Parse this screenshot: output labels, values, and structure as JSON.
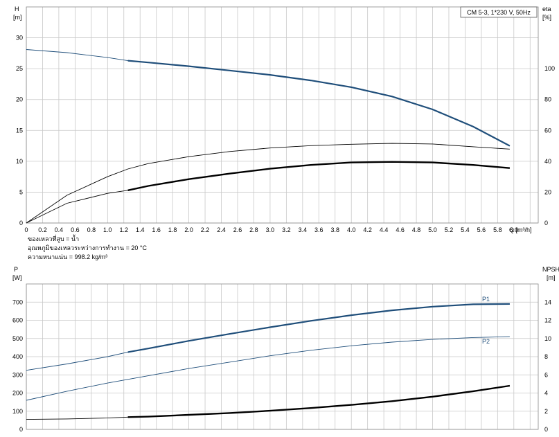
{
  "chart_data": [
    {
      "type": "line",
      "title": "CM 5-3, 1*230 V, 50Hz",
      "y_label": "H",
      "y_unit": "[m]",
      "y2_label": "eta",
      "y2_unit": "[%]",
      "x_label": "Q [m³/h]",
      "xlim": [
        0,
        6.3
      ],
      "ylim": [
        0,
        35
      ],
      "y2lim": [
        0,
        140
      ],
      "x_ticks": [
        "0",
        "0.2",
        "0.4",
        "0.6",
        "0.8",
        "1.0",
        "1.2",
        "1.4",
        "1.6",
        "1.8",
        "2.0",
        "2.2",
        "2.4",
        "2.6",
        "2.8",
        "3.0",
        "3.2",
        "3.4",
        "3.6",
        "3.8",
        "4.0",
        "4.2",
        "4.4",
        "4.6",
        "4.8",
        "5.0",
        "5.2",
        "5.4",
        "5.6",
        "5.8",
        "6.0"
      ],
      "y_ticks": [
        "0",
        "5",
        "10",
        "15",
        "20",
        "25",
        "30"
      ],
      "y2_ticks": [
        "0",
        "20",
        "40",
        "60",
        "80",
        "100"
      ],
      "grid": true,
      "series": [
        {
          "axis": "y",
          "color": "#1f4e7a",
          "x": [
            0,
            0.5,
            1.0,
            1.25,
            1.5,
            2.0,
            2.5,
            3.0,
            3.5,
            4.0,
            4.5,
            5.0,
            5.5,
            5.95
          ],
          "y": [
            28.1,
            27.6,
            26.8,
            26.3,
            26.0,
            25.4,
            24.7,
            24.0,
            23.1,
            22.0,
            20.5,
            18.4,
            15.6,
            12.5
          ],
          "bold_from": 1.25
        },
        {
          "axis": "y2",
          "color": "#000000",
          "x": [
            0,
            0.5,
            1.0,
            1.25,
            1.5,
            2.0,
            2.5,
            3.0,
            3.5,
            4.0,
            4.5,
            5.0,
            5.5,
            5.95
          ],
          "y": [
            0,
            18,
            30,
            35,
            38.5,
            43,
            46.3,
            48.6,
            50.1,
            51,
            51.6,
            51.2,
            49.4,
            47.9
          ]
        },
        {
          "axis": "y",
          "color": "#000000",
          "x": [
            0,
            0.5,
            1.0,
            1.25,
            1.5,
            2.0,
            2.5,
            3.0,
            3.5,
            4.0,
            4.5,
            5.0,
            5.5,
            5.95
          ],
          "y": [
            0,
            3.2,
            4.8,
            5.3,
            6.0,
            7.1,
            8.0,
            8.8,
            9.4,
            9.8,
            9.9,
            9.8,
            9.4,
            8.9
          ],
          "bold_from": 1.25,
          "bold": true
        }
      ],
      "notes": [
        "ของเหลวที่สูบ = น้ำ",
        "อุณหภูมิของเหลวระหว่างการทำงาน = 20 °C",
        "ความหนาแน่น = 998.2 kg/m³"
      ]
    },
    {
      "type": "line",
      "y_label": "P",
      "y_unit": "[W]",
      "y2_label": "NPSH",
      "y2_unit": "[m]",
      "xlim": [
        0,
        6.3
      ],
      "ylim": [
        0,
        800
      ],
      "y2lim": [
        0,
        16
      ],
      "y_ticks": [
        "0",
        "100",
        "200",
        "300",
        "400",
        "500",
        "600",
        "700"
      ],
      "y2_ticks": [
        "0",
        "2",
        "4",
        "6",
        "8",
        "10",
        "12",
        "14"
      ],
      "grid": true,
      "series": [
        {
          "name": "P1",
          "axis": "y",
          "color": "#1f4e7a",
          "x": [
            0,
            0.5,
            1.0,
            1.25,
            1.5,
            2.0,
            2.5,
            3.0,
            3.5,
            4.0,
            4.5,
            5.0,
            5.5,
            5.95
          ],
          "y": [
            325,
            360,
            400,
            425,
            445,
            487,
            525,
            562,
            597,
            628,
            655,
            675,
            688,
            690
          ],
          "bold_from": 1.25
        },
        {
          "name": "P2",
          "axis": "y",
          "color": "#1f4e7a",
          "x": [
            0,
            0.5,
            1.0,
            1.25,
            1.5,
            2.0,
            2.5,
            3.0,
            3.5,
            4.0,
            4.5,
            5.0,
            5.5,
            5.95
          ],
          "y": [
            160,
            210,
            255,
            275,
            295,
            335,
            370,
            405,
            435,
            460,
            480,
            495,
            505,
            510
          ]
        },
        {
          "axis": "y2",
          "color": "#000000",
          "x": [
            0,
            0.5,
            1.0,
            1.25,
            1.5,
            2.0,
            2.5,
            3.0,
            3.5,
            4.0,
            4.5,
            5.0,
            5.5,
            5.95
          ],
          "y": [
            1.1,
            1.15,
            1.25,
            1.35,
            1.4,
            1.6,
            1.8,
            2.05,
            2.35,
            2.7,
            3.1,
            3.6,
            4.2,
            4.8
          ],
          "bold_from": 1.25,
          "bold": true
        }
      ]
    }
  ]
}
